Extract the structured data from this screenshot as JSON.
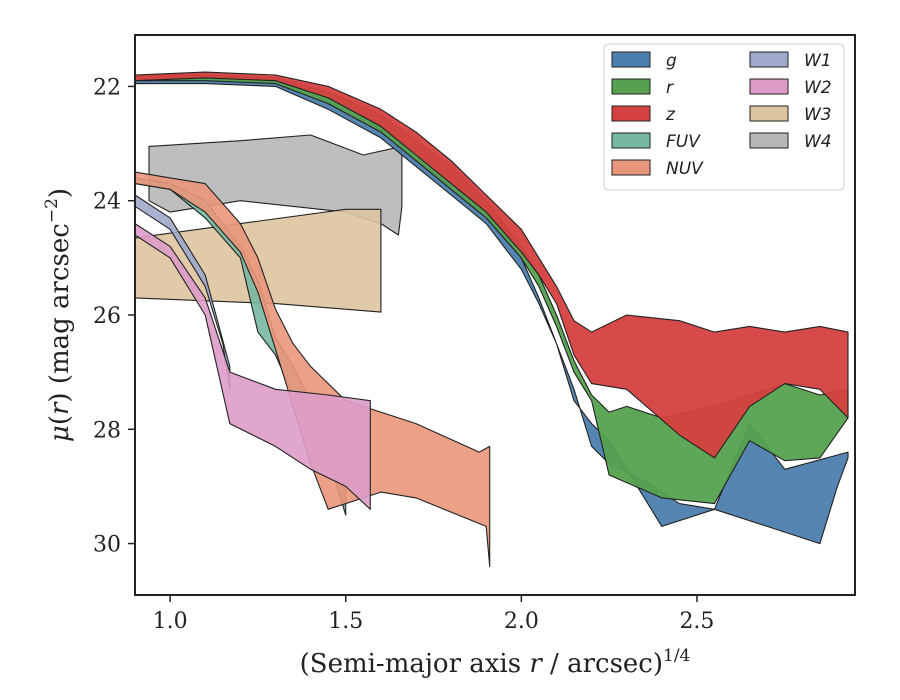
{
  "chart_data": {
    "type": "area",
    "xlabel": "(Semi-major axis r / arcsec)^{1/4}",
    "ylabel": "μ(r) (mag arcsec^{−2})",
    "xlim": [
      0.9,
      2.95
    ],
    "ylim": [
      30.9,
      21.1
    ],
    "y_inverted": true,
    "x_ticks": [
      "1.0",
      "1.5",
      "2.0",
      "2.5"
    ],
    "y_ticks": [
      "22",
      "24",
      "26",
      "28",
      "30"
    ],
    "legend_position": "top-right",
    "legend_columns": 2,
    "series": [
      {
        "name": "g",
        "color": "#4c7fae",
        "upper": [
          [
            0.9,
            21.95
          ],
          [
            1.1,
            21.95
          ],
          [
            1.3,
            22.0
          ],
          [
            1.45,
            22.4
          ],
          [
            1.6,
            22.9
          ],
          [
            1.7,
            23.4
          ],
          [
            1.8,
            23.9
          ],
          [
            1.9,
            24.4
          ],
          [
            2.0,
            25.2
          ],
          [
            2.05,
            25.8
          ],
          [
            2.1,
            26.5
          ],
          [
            2.15,
            27.5
          ],
          [
            2.2,
            27.9
          ],
          [
            2.25,
            28.2
          ],
          [
            2.4,
            29.7
          ],
          [
            2.55,
            29.4
          ],
          [
            2.75,
            29.8
          ],
          [
            2.85,
            30.0
          ],
          [
            2.9,
            29.0
          ],
          [
            2.93,
            28.5
          ]
        ],
        "lower": [
          [
            2.93,
            28.4
          ],
          [
            2.75,
            28.7
          ],
          [
            2.65,
            27.9
          ],
          [
            2.55,
            29.4
          ],
          [
            2.45,
            29.3
          ],
          [
            2.35,
            28.9
          ],
          [
            2.25,
            28.6
          ],
          [
            2.2,
            28.3
          ],
          [
            2.15,
            27.3
          ],
          [
            2.1,
            26.5
          ],
          [
            2.05,
            25.7
          ],
          [
            2.0,
            25.0
          ],
          [
            1.9,
            24.1
          ],
          [
            1.8,
            23.5
          ],
          [
            1.7,
            23.0
          ],
          [
            1.6,
            22.6
          ],
          [
            1.45,
            22.2
          ],
          [
            1.3,
            21.9
          ],
          [
            1.1,
            21.85
          ],
          [
            0.9,
            21.85
          ]
        ]
      },
      {
        "name": "r",
        "color": "#55a14f",
        "upper": [
          [
            0.9,
            21.9
          ],
          [
            1.1,
            21.9
          ],
          [
            1.3,
            21.95
          ],
          [
            1.45,
            22.3
          ],
          [
            1.6,
            22.8
          ],
          [
            1.7,
            23.3
          ],
          [
            1.8,
            23.8
          ],
          [
            1.9,
            24.3
          ],
          [
            2.0,
            25.0
          ],
          [
            2.05,
            25.5
          ],
          [
            2.1,
            26.2
          ],
          [
            2.15,
            27.0
          ],
          [
            2.2,
            27.5
          ],
          [
            2.25,
            28.8
          ],
          [
            2.4,
            29.2
          ],
          [
            2.55,
            29.3
          ],
          [
            2.65,
            28.2
          ],
          [
            2.75,
            28.55
          ],
          [
            2.85,
            28.5
          ],
          [
            2.93,
            27.8
          ]
        ],
        "lower": [
          [
            2.93,
            27.3
          ],
          [
            2.85,
            27.4
          ],
          [
            2.75,
            27.2
          ],
          [
            2.65,
            27.4
          ],
          [
            2.55,
            27.6
          ],
          [
            2.4,
            27.8
          ],
          [
            2.3,
            27.6
          ],
          [
            2.25,
            27.7
          ],
          [
            2.2,
            27.4
          ],
          [
            2.15,
            26.8
          ],
          [
            2.1,
            26.0
          ],
          [
            2.05,
            25.3
          ],
          [
            2.0,
            24.8
          ],
          [
            1.9,
            24.0
          ],
          [
            1.8,
            23.4
          ],
          [
            1.7,
            22.95
          ],
          [
            1.6,
            22.5
          ],
          [
            1.45,
            22.1
          ],
          [
            1.3,
            21.85
          ],
          [
            1.1,
            21.8
          ],
          [
            0.9,
            21.8
          ]
        ]
      },
      {
        "name": "z",
        "color": "#d54040",
        "upper": [
          [
            0.9,
            21.9
          ],
          [
            1.1,
            21.85
          ],
          [
            1.3,
            21.9
          ],
          [
            1.45,
            22.2
          ],
          [
            1.6,
            22.7
          ],
          [
            1.7,
            23.2
          ],
          [
            1.8,
            23.7
          ],
          [
            1.9,
            24.2
          ],
          [
            2.0,
            24.9
          ],
          [
            2.05,
            25.3
          ],
          [
            2.1,
            25.8
          ],
          [
            2.15,
            26.7
          ],
          [
            2.2,
            27.2
          ],
          [
            2.3,
            27.3
          ],
          [
            2.45,
            28.1
          ],
          [
            2.55,
            28.5
          ],
          [
            2.65,
            27.6
          ],
          [
            2.75,
            27.2
          ],
          [
            2.85,
            27.3
          ],
          [
            2.93,
            27.8
          ]
        ],
        "lower": [
          [
            2.93,
            26.3
          ],
          [
            2.85,
            26.2
          ],
          [
            2.75,
            26.3
          ],
          [
            2.65,
            26.2
          ],
          [
            2.55,
            26.3
          ],
          [
            2.45,
            26.1
          ],
          [
            2.3,
            26.0
          ],
          [
            2.2,
            26.3
          ],
          [
            2.15,
            26.1
          ],
          [
            2.1,
            25.5
          ],
          [
            2.05,
            25.0
          ],
          [
            2.0,
            24.5
          ],
          [
            1.9,
            23.9
          ],
          [
            1.8,
            23.3
          ],
          [
            1.7,
            22.8
          ],
          [
            1.6,
            22.4
          ],
          [
            1.45,
            22.0
          ],
          [
            1.3,
            21.8
          ],
          [
            1.1,
            21.75
          ],
          [
            0.9,
            21.8
          ]
        ]
      },
      {
        "name": "FUV",
        "color": "#77b8a0",
        "upper": [
          [
            0.9,
            23.7
          ],
          [
            1.0,
            23.8
          ],
          [
            1.1,
            24.3
          ],
          [
            1.2,
            25.0
          ],
          [
            1.25,
            26.3
          ],
          [
            1.3,
            26.7
          ],
          [
            1.35,
            27.4
          ],
          [
            1.4,
            27.9
          ],
          [
            1.45,
            28.5
          ],
          [
            1.5,
            29.5
          ]
        ],
        "lower": [
          [
            1.5,
            28.2
          ],
          [
            1.45,
            27.9
          ],
          [
            1.4,
            27.5
          ],
          [
            1.35,
            26.9
          ],
          [
            1.3,
            26.4
          ],
          [
            1.25,
            25.4
          ],
          [
            1.2,
            24.8
          ],
          [
            1.1,
            24.0
          ],
          [
            1.0,
            23.7
          ],
          [
            0.9,
            23.6
          ]
        ]
      },
      {
        "name": "NUV",
        "color": "#e9967a",
        "upper": [
          [
            0.9,
            23.7
          ],
          [
            1.0,
            23.8
          ],
          [
            1.1,
            24.2
          ],
          [
            1.2,
            24.9
          ],
          [
            1.25,
            25.6
          ],
          [
            1.3,
            26.6
          ],
          [
            1.35,
            27.6
          ],
          [
            1.4,
            28.6
          ],
          [
            1.45,
            29.4
          ],
          [
            1.6,
            29.1
          ],
          [
            1.7,
            29.2
          ],
          [
            1.9,
            29.7
          ],
          [
            1.91,
            30.4
          ]
        ],
        "lower": [
          [
            1.91,
            28.3
          ],
          [
            1.88,
            28.4
          ],
          [
            1.7,
            27.9
          ],
          [
            1.5,
            27.5
          ],
          [
            1.4,
            26.9
          ],
          [
            1.35,
            26.5
          ],
          [
            1.3,
            25.9
          ],
          [
            1.25,
            25.0
          ],
          [
            1.2,
            24.4
          ],
          [
            1.1,
            23.7
          ],
          [
            1.0,
            23.6
          ],
          [
            0.9,
            23.5
          ]
        ]
      },
      {
        "name": "W1",
        "color": "#9ea9cb",
        "upper": [
          [
            0.9,
            24.1
          ],
          [
            1.0,
            24.5
          ],
          [
            1.1,
            25.5
          ],
          [
            1.15,
            26.5
          ],
          [
            1.17,
            27.3
          ]
        ],
        "lower": [
          [
            1.17,
            26.9
          ],
          [
            1.1,
            25.3
          ],
          [
            1.0,
            24.3
          ],
          [
            0.9,
            23.9
          ]
        ]
      },
      {
        "name": "W2",
        "color": "#de9cc8",
        "upper": [
          [
            0.9,
            24.6
          ],
          [
            1.0,
            25.0
          ],
          [
            1.1,
            26.0
          ],
          [
            1.17,
            27.9
          ],
          [
            1.3,
            28.3
          ],
          [
            1.4,
            28.7
          ],
          [
            1.5,
            29.0
          ],
          [
            1.57,
            29.4
          ]
        ],
        "lower": [
          [
            1.57,
            27.5
          ],
          [
            1.45,
            27.4
          ],
          [
            1.3,
            27.3
          ],
          [
            1.17,
            27.0
          ],
          [
            1.1,
            25.7
          ],
          [
            1.0,
            24.8
          ],
          [
            0.9,
            24.4
          ]
        ]
      },
      {
        "name": "W3",
        "color": "#dec4a0",
        "upper": [
          [
            0.9,
            25.7
          ],
          [
            1.3,
            25.8
          ],
          [
            1.6,
            25.95
          ],
          [
            1.6,
            24.15
          ],
          [
            1.5,
            24.15
          ],
          [
            0.9,
            24.65
          ]
        ],
        "lower": []
      },
      {
        "name": "W4",
        "color": "#b7b7b7",
        "upper": [
          [
            0.94,
            23.05
          ],
          [
            1.2,
            22.95
          ],
          [
            1.4,
            22.85
          ],
          [
            1.55,
            23.2
          ],
          [
            1.66,
            23.05
          ],
          [
            1.66,
            24.1
          ],
          [
            1.65,
            24.6
          ],
          [
            1.6,
            24.4
          ],
          [
            1.5,
            24.2
          ],
          [
            1.2,
            24.0
          ],
          [
            1.0,
            24.2
          ],
          [
            0.94,
            24.0
          ]
        ],
        "lower": []
      }
    ]
  }
}
